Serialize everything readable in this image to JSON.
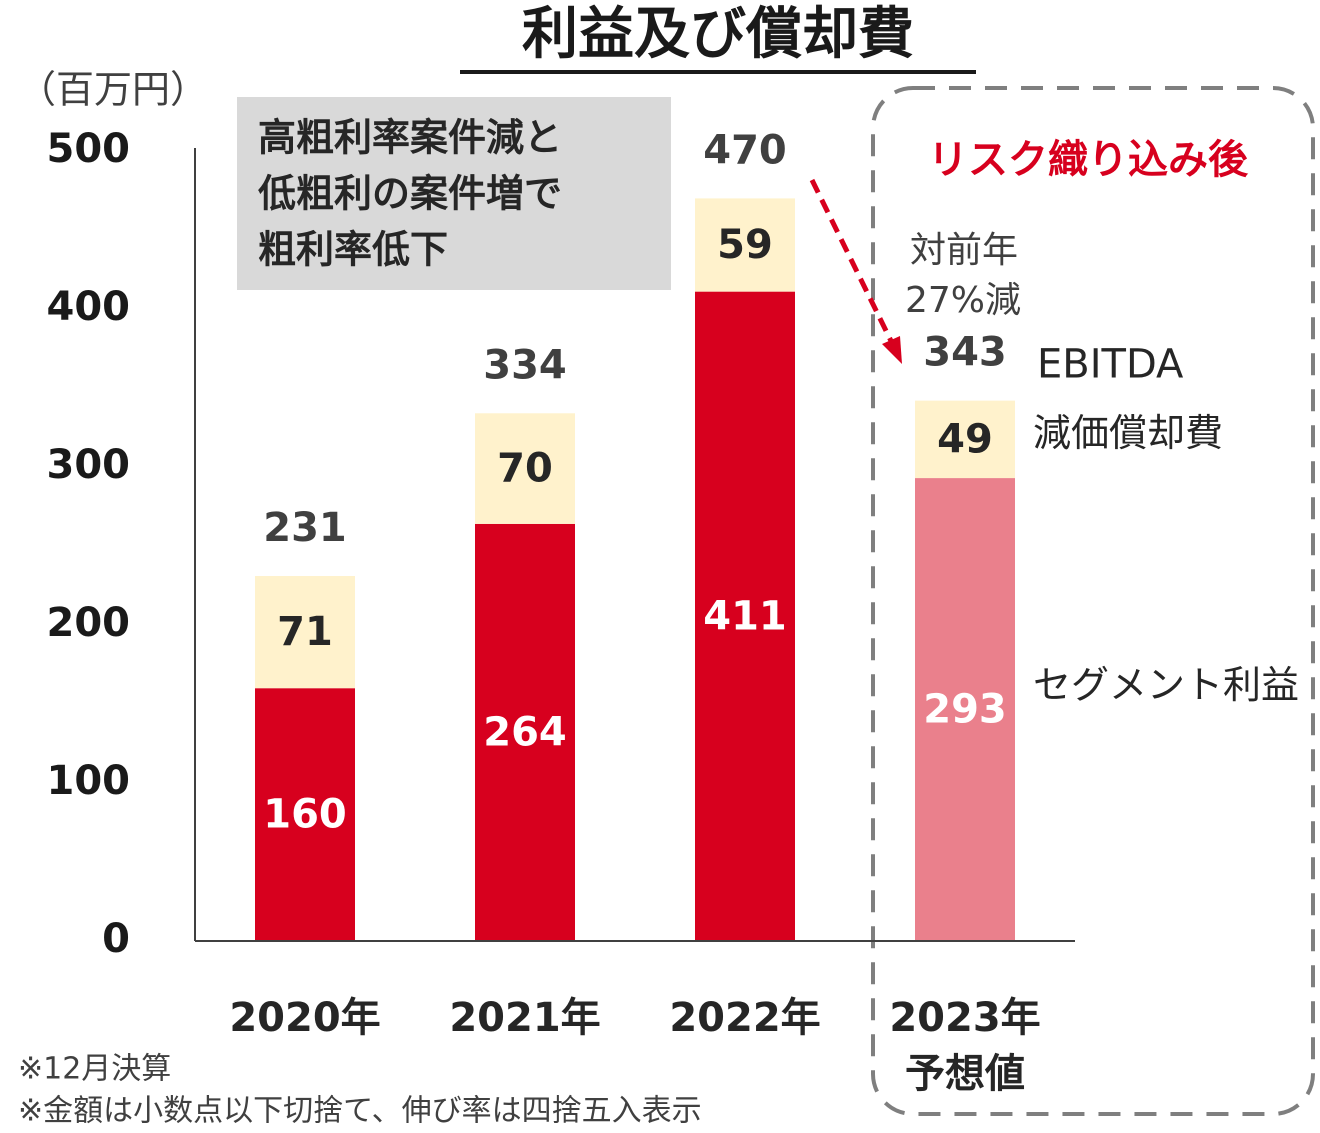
{
  "chart_data": {
    "type": "stacked_bar",
    "title": "利益及び償却費",
    "y_unit": "（百万円）",
    "categories": [
      "2020年",
      "2021年",
      "2022年",
      "2023年\n予想値"
    ],
    "series": [
      {
        "name": "セグメント利益",
        "colors": [
          "#d7001e",
          "#d7001e",
          "#d7001e",
          "#ea808c"
        ],
        "label_color": "#ffffff",
        "values": [
          160,
          264,
          411,
          293
        ]
      },
      {
        "name": "減価償却費",
        "colors": [
          "#fff2cc",
          "#fff2cc",
          "#fff2cc",
          "#fff2cc"
        ],
        "label_color": "#262626",
        "values": [
          71,
          70,
          59,
          49
        ]
      }
    ],
    "totals": {
      "name": "EBITDA",
      "values": [
        231,
        334,
        470,
        343
      ]
    },
    "ylim": [
      0,
      500
    ],
    "yticks": [
      0,
      100,
      200,
      300,
      400,
      500
    ],
    "annotations": {
      "gross_margin_note": [
        "高粗利率案件減と",
        "低粗利の案件増で",
        "粗利率低下"
      ],
      "forecast_header": "リスク織り込み後",
      "yoy_note": [
        "対前年",
        "27%減"
      ]
    },
    "footnotes": [
      "※12月決算",
      "※金額は小数点以下切捨て、伸び率は四捨五入表示"
    ]
  }
}
